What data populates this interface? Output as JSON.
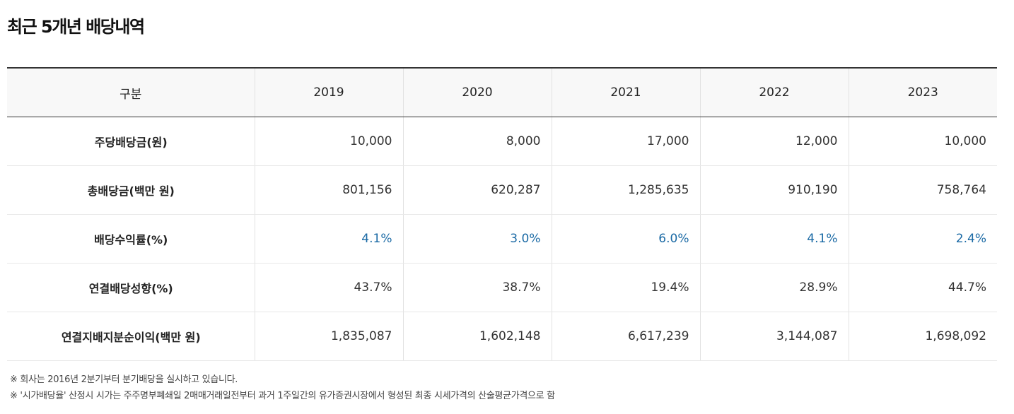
{
  "title": "최근 5개년 배당내역",
  "header": [
    "구분",
    "2019",
    "2020",
    "2021",
    "2022",
    "2023"
  ],
  "rows": [
    {
      "label": "주당배당금(원)",
      "values": [
        "10,000",
        "8,000",
        "17,000",
        "12,000",
        "10,000"
      ]
    },
    {
      "label": "총배당금(백만 원)",
      "values": [
        "801,156",
        "620,287",
        "1,285,635",
        "910,190",
        "758,764"
      ]
    },
    {
      "label": "배당수익률(%)",
      "values": [
        "4.1%",
        "3.0%",
        "6.0%",
        "4.1%",
        "2.4%"
      ],
      "highlight": true
    },
    {
      "label": "연결배당성향(%)",
      "values": [
        "43.7%",
        "38.7%",
        "19.4%",
        "28.9%",
        "44.7%"
      ]
    },
    {
      "label": "연결지배지분순이익(백만 원)",
      "values": [
        "1,835,087",
        "1,602,148",
        "6,617,239",
        "3,144,087",
        "1,698,092"
      ]
    }
  ],
  "notes": [
    "※ 회사는 2016년 2분기부터 분기배당을 실시하고 있습니다.",
    "※ '시가배당율' 산정시 시가는 주주명부폐쇄일 2매매거래일전부터 과거 1주일간의 유가증권시장에서 형성된 최종 시세가격의 산술평균가격으로 함"
  ],
  "colors": {
    "highlight": "#1b6aa5"
  }
}
